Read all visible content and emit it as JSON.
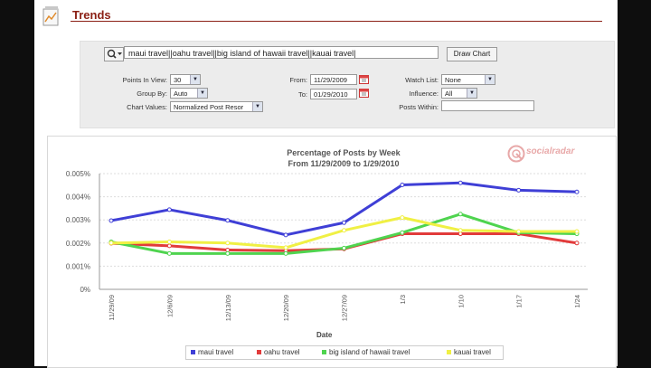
{
  "header": {
    "title": "Trends"
  },
  "search": {
    "query": "maui travel||oahu travel||big island of hawaii travel||kauai travel|",
    "button": "Draw Chart"
  },
  "filters": {
    "points_label": "Points In View:",
    "points_value": "30",
    "groupby_label": "Group By:",
    "groupby_value": "Auto",
    "chartvalues_label": "Chart Values:",
    "chartvalues_value": "Normalized Post Resor",
    "from_label": "From:",
    "from_value": "11/29/2009",
    "to_label": "To:",
    "to_value": "01/29/2010",
    "watchlist_label": "Watch List:",
    "watchlist_value": "None",
    "influence_label": "Influence:",
    "influence_value": "All",
    "postswithin_label": "Posts Within:",
    "postswithin_value": ""
  },
  "brand": {
    "name": "socialradar"
  },
  "chart_data": {
    "type": "line",
    "title": "Percentage of Posts by Week",
    "subtitle": "From 11/29/2009 to 1/29/2010",
    "xlabel": "Date",
    "ylabel": "",
    "categories": [
      "11/29/09",
      "12/6/09",
      "12/13/09",
      "12/20/09",
      "12/27/09",
      "1/3",
      "1/10",
      "1/17",
      "1/24"
    ],
    "y_ticks": [
      "0%",
      "0.001%",
      "0.002%",
      "0.003%",
      "0.004%",
      "0.005%"
    ],
    "ylim": [
      0,
      0.005
    ],
    "grid": true,
    "legend": "bottom",
    "series": [
      {
        "name": "maui travel",
        "color": "#3f3fd6",
        "values": [
          0.00297,
          0.00344,
          0.00298,
          0.00235,
          0.00288,
          0.00451,
          0.0046,
          0.00428,
          0.00421
        ]
      },
      {
        "name": "oahu travel",
        "color": "#e23b3b",
        "values": [
          0.00199,
          0.00188,
          0.0017,
          0.00167,
          0.00175,
          0.0024,
          0.0024,
          0.0024,
          0.002
        ]
      },
      {
        "name": "big island of hawaii travel",
        "color": "#4fd44f",
        "values": [
          0.00205,
          0.00155,
          0.00155,
          0.00155,
          0.00178,
          0.00245,
          0.00325,
          0.00245,
          0.0024
        ]
      },
      {
        "name": "kauai travel",
        "color": "#f0f044",
        "values": [
          0.002,
          0.00205,
          0.002,
          0.0018,
          0.00255,
          0.0031,
          0.00255,
          0.0025,
          0.0025
        ]
      }
    ]
  }
}
